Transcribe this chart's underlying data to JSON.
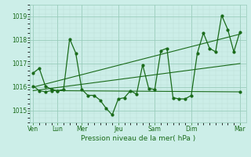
{
  "title": "Pression niveau de la mer( hPa )",
  "bg_color": "#cceee8",
  "grid_color_major": "#99ccbb",
  "grid_color_minor": "#bbddd5",
  "line_color": "#1a6b1a",
  "text_color": "#1a6b1a",
  "ylim": [
    1014.5,
    1019.5
  ],
  "yticks": [
    1015,
    1016,
    1017,
    1018,
    1019
  ],
  "x_major_ticks": [
    0,
    4,
    8,
    14,
    20,
    26,
    34
  ],
  "x_major_labels": [
    "Ven",
    "Lun",
    "Mer",
    "Jeu",
    "Sam",
    "Dim",
    "Mar"
  ],
  "xlim": [
    -0.5,
    35
  ],
  "series1_x": [
    0,
    1,
    2,
    3,
    4,
    5,
    6,
    7,
    8,
    9,
    10,
    11,
    12,
    13,
    14,
    15,
    16,
    17,
    18,
    19,
    20,
    21,
    22,
    23,
    24,
    25,
    26,
    27,
    28,
    29,
    30,
    31,
    32,
    33,
    34
  ],
  "series1_y": [
    1016.6,
    1016.8,
    1016.05,
    1015.9,
    1015.85,
    1015.9,
    1018.05,
    1017.45,
    1015.9,
    1015.65,
    1015.65,
    1015.45,
    1015.1,
    1014.82,
    1015.5,
    1015.55,
    1015.85,
    1015.7,
    1016.95,
    1015.95,
    1015.9,
    1017.55,
    1017.65,
    1015.55,
    1015.5,
    1015.5,
    1015.65,
    1017.45,
    1018.3,
    1017.65,
    1017.5,
    1019.05,
    1018.45,
    1017.5,
    1018.35
  ],
  "series2_x": [
    0,
    1,
    2,
    3,
    4,
    34
  ],
  "series2_y": [
    1016.05,
    1015.85,
    1015.8,
    1015.85,
    1015.85,
    1015.8
  ],
  "trend1_x": [
    0,
    34
  ],
  "trend1_y": [
    1015.85,
    1017.0
  ],
  "trend2_x": [
    0,
    34
  ],
  "trend2_y": [
    1016.0,
    1018.25
  ]
}
